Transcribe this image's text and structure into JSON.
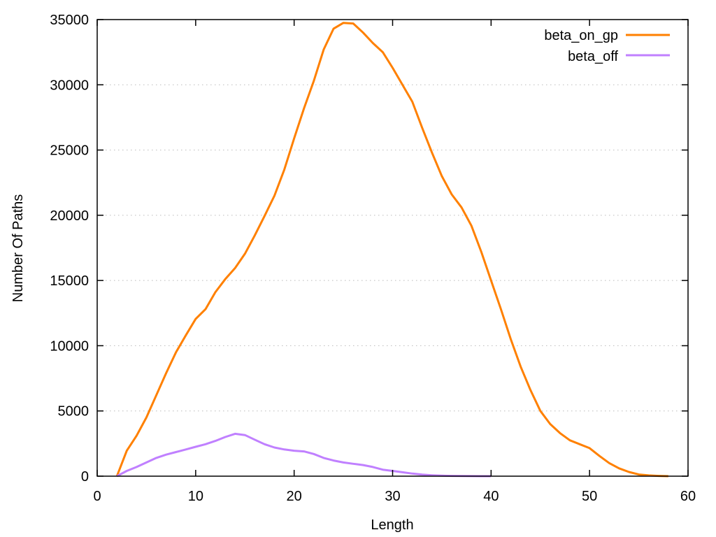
{
  "chart_data": {
    "type": "line",
    "title": "",
    "xlabel": "Length",
    "ylabel": "Number Of Paths",
    "xlim": [
      0,
      60
    ],
    "ylim": [
      0,
      35000
    ],
    "xticks": [
      "0",
      "10",
      "20",
      "30",
      "40",
      "50",
      "60"
    ],
    "yticks": [
      "0",
      "5000",
      "10000",
      "15000",
      "20000",
      "25000",
      "30000",
      "35000"
    ],
    "grid": "horizontal dotted",
    "legend_position": "top-right",
    "series": [
      {
        "name": "beta_on_gp",
        "color": "#ff8000",
        "x": [
          2,
          3,
          4,
          5,
          6,
          7,
          8,
          9,
          10,
          11,
          12,
          13,
          14,
          15,
          16,
          17,
          18,
          19,
          20,
          21,
          22,
          23,
          24,
          25,
          26,
          27,
          28,
          29,
          30,
          31,
          32,
          33,
          34,
          35,
          36,
          37,
          38,
          39,
          40,
          41,
          42,
          43,
          44,
          45,
          46,
          47,
          48,
          49,
          50,
          51,
          52,
          53,
          54,
          55,
          56,
          57,
          58
        ],
        "y": [
          0,
          1950,
          3100,
          4500,
          6200,
          7900,
          9500,
          10800,
          12050,
          12800,
          14100,
          15100,
          15950,
          17050,
          18450,
          19950,
          21500,
          23500,
          25900,
          28200,
          30300,
          32700,
          34300,
          34750,
          34700,
          34000,
          33200,
          32500,
          31300,
          30000,
          28700,
          26700,
          24800,
          23000,
          21600,
          20600,
          19200,
          17200,
          15000,
          12800,
          10500,
          8400,
          6600,
          5000,
          4000,
          3300,
          2750,
          2450,
          2150,
          1550,
          1000,
          600,
          320,
          130,
          60,
          20,
          0
        ]
      },
      {
        "name": "beta_off",
        "color": "#c080ff",
        "x": [
          2,
          3,
          4,
          5,
          6,
          7,
          8,
          9,
          10,
          11,
          12,
          13,
          14,
          15,
          16,
          17,
          18,
          19,
          20,
          21,
          22,
          23,
          24,
          25,
          26,
          27,
          28,
          29,
          30,
          31,
          32,
          33,
          34,
          35,
          36,
          37,
          38,
          39,
          40
        ],
        "y": [
          0,
          400,
          700,
          1050,
          1400,
          1650,
          1850,
          2050,
          2250,
          2450,
          2700,
          3000,
          3250,
          3150,
          2800,
          2450,
          2200,
          2050,
          1950,
          1900,
          1700,
          1400,
          1200,
          1050,
          950,
          850,
          700,
          500,
          400,
          300,
          200,
          120,
          70,
          40,
          20,
          10,
          5,
          2,
          0
        ]
      }
    ]
  }
}
